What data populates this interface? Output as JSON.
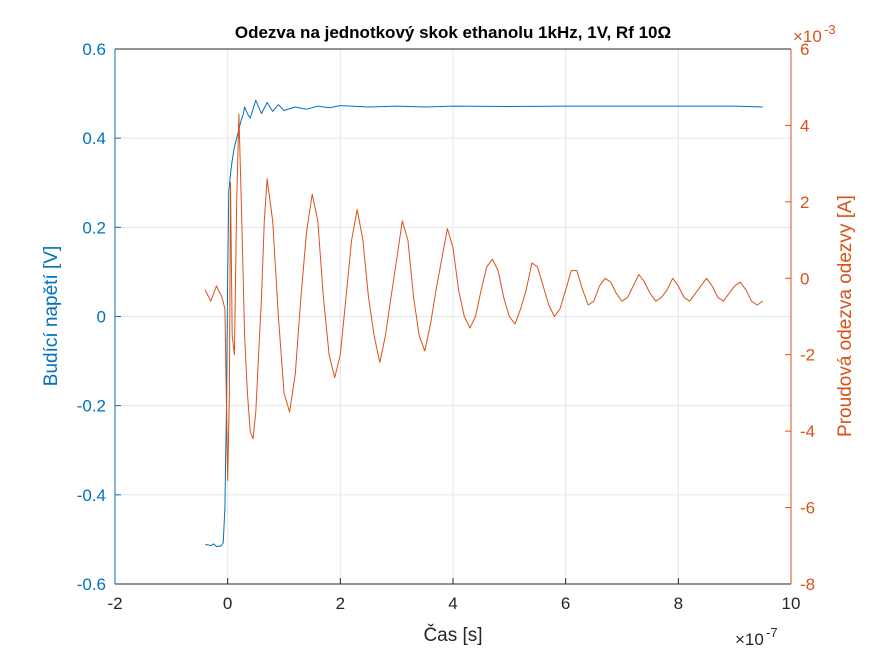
{
  "chart_data": {
    "type": "line",
    "title": "Odezva na jednotkový skok ethanolu 1kHz, 1V, Rf 10Ω",
    "xlabel": "Čas [s]",
    "ylabel_left": "Budící napětí [V]",
    "ylabel_right": "Proudová odezva odezvy [A]",
    "x_exponent_label": "×10",
    "x_exponent": "-7",
    "y_right_exponent_label": "×10",
    "y_right_exponent": "-3",
    "xlim": [
      -2,
      10
    ],
    "ylim_left": [
      -0.6,
      0.6
    ],
    "ylim_right": [
      -8,
      6
    ],
    "x_ticks": [
      "-2",
      "0",
      "2",
      "4",
      "6",
      "8",
      "10"
    ],
    "y_left_ticks": [
      "-0.6",
      "-0.4",
      "-0.2",
      "0",
      "0.2",
      "0.4",
      "0.6"
    ],
    "y_right_ticks": [
      "-8",
      "-6",
      "-4",
      "-2",
      "0",
      "2",
      "4",
      "6"
    ],
    "grid": true,
    "colors": {
      "left": "#0072BD",
      "right": "#D95319",
      "grid": "#E6E6E6",
      "axes": "#262626"
    },
    "series": [
      {
        "axis": "left",
        "x": [
          -0.4,
          -0.35,
          -0.3,
          -0.25,
          -0.2,
          -0.15,
          -0.12,
          -0.08,
          -0.05,
          -0.02,
          0.0,
          0.02,
          0.05,
          0.08,
          0.12,
          0.16,
          0.2,
          0.24,
          0.28,
          0.3,
          0.35,
          0.4,
          0.5,
          0.6,
          0.7,
          0.8,
          0.9,
          1.0,
          1.2,
          1.4,
          1.6,
          1.8,
          2.0,
          2.5,
          3.0,
          3.5,
          4.0,
          5.0,
          6.0,
          7.0,
          8.0,
          9.0,
          9.5
        ],
        "y": [
          -0.512,
          -0.512,
          -0.514,
          -0.51,
          -0.516,
          -0.515,
          -0.515,
          -0.508,
          -0.43,
          -0.2,
          0.1,
          0.28,
          0.32,
          0.35,
          0.38,
          0.4,
          0.42,
          0.44,
          0.455,
          0.47,
          0.455,
          0.445,
          0.485,
          0.455,
          0.48,
          0.46,
          0.475,
          0.462,
          0.47,
          0.465,
          0.472,
          0.468,
          0.473,
          0.47,
          0.472,
          0.47,
          0.472,
          0.471,
          0.472,
          0.472,
          0.472,
          0.472,
          0.47
        ]
      },
      {
        "axis": "right",
        "x": [
          -0.4,
          -0.3,
          -0.2,
          -0.1,
          -0.05,
          0.0,
          0.03,
          0.05,
          0.08,
          0.12,
          0.16,
          0.2,
          0.25,
          0.3,
          0.35,
          0.4,
          0.45,
          0.5,
          0.55,
          0.6,
          0.65,
          0.7,
          0.8,
          0.9,
          1.0,
          1.1,
          1.2,
          1.3,
          1.4,
          1.5,
          1.6,
          1.7,
          1.8,
          1.9,
          2.0,
          2.1,
          2.2,
          2.3,
          2.4,
          2.5,
          2.6,
          2.7,
          2.8,
          2.9,
          3.0,
          3.1,
          3.2,
          3.3,
          3.4,
          3.5,
          3.6,
          3.7,
          3.8,
          3.9,
          4.0,
          4.1,
          4.2,
          4.3,
          4.4,
          4.5,
          4.6,
          4.7,
          4.8,
          4.9,
          5.0,
          5.1,
          5.2,
          5.3,
          5.4,
          5.5,
          5.6,
          5.7,
          5.8,
          5.9,
          6.0,
          6.1,
          6.2,
          6.3,
          6.4,
          6.5,
          6.6,
          6.7,
          6.8,
          6.9,
          7.0,
          7.1,
          7.2,
          7.3,
          7.4,
          7.5,
          7.6,
          7.7,
          7.8,
          7.9,
          8.0,
          8.1,
          8.2,
          8.3,
          8.4,
          8.5,
          8.6,
          8.7,
          8.8,
          8.9,
          9.0,
          9.1,
          9.2,
          9.3,
          9.4,
          9.5
        ],
        "y": [
          -0.3,
          -0.6,
          -0.2,
          -0.5,
          -0.8,
          -5.3,
          -3.0,
          2.5,
          -1.5,
          -2.0,
          2.0,
          4.3,
          1.5,
          -1.5,
          -3.0,
          -4.0,
          -4.2,
          -3.5,
          -2.0,
          -0.5,
          1.5,
          2.6,
          1.5,
          -1.0,
          -3.0,
          -3.5,
          -2.5,
          -0.5,
          1.2,
          2.2,
          1.5,
          -0.5,
          -2.0,
          -2.6,
          -2.0,
          -0.5,
          1.0,
          1.8,
          1.0,
          -0.5,
          -1.5,
          -2.2,
          -1.5,
          -0.5,
          0.5,
          1.5,
          1.0,
          -0.5,
          -1.5,
          -1.9,
          -1.2,
          -0.3,
          0.5,
          1.3,
          0.8,
          -0.3,
          -1.0,
          -1.3,
          -1.0,
          -0.3,
          0.3,
          0.5,
          0.2,
          -0.5,
          -1.0,
          -1.2,
          -0.8,
          -0.3,
          0.4,
          0.3,
          -0.2,
          -0.7,
          -1.0,
          -0.8,
          -0.3,
          0.2,
          0.2,
          -0.3,
          -0.7,
          -0.6,
          -0.2,
          0.0,
          -0.1,
          -0.4,
          -0.6,
          -0.5,
          -0.2,
          0.1,
          -0.1,
          -0.4,
          -0.6,
          -0.5,
          -0.3,
          0.0,
          -0.2,
          -0.5,
          -0.6,
          -0.4,
          -0.2,
          0.0,
          -0.2,
          -0.5,
          -0.6,
          -0.4,
          -0.2,
          -0.1,
          -0.3,
          -0.6,
          -0.7,
          -0.6
        ]
      }
    ]
  }
}
